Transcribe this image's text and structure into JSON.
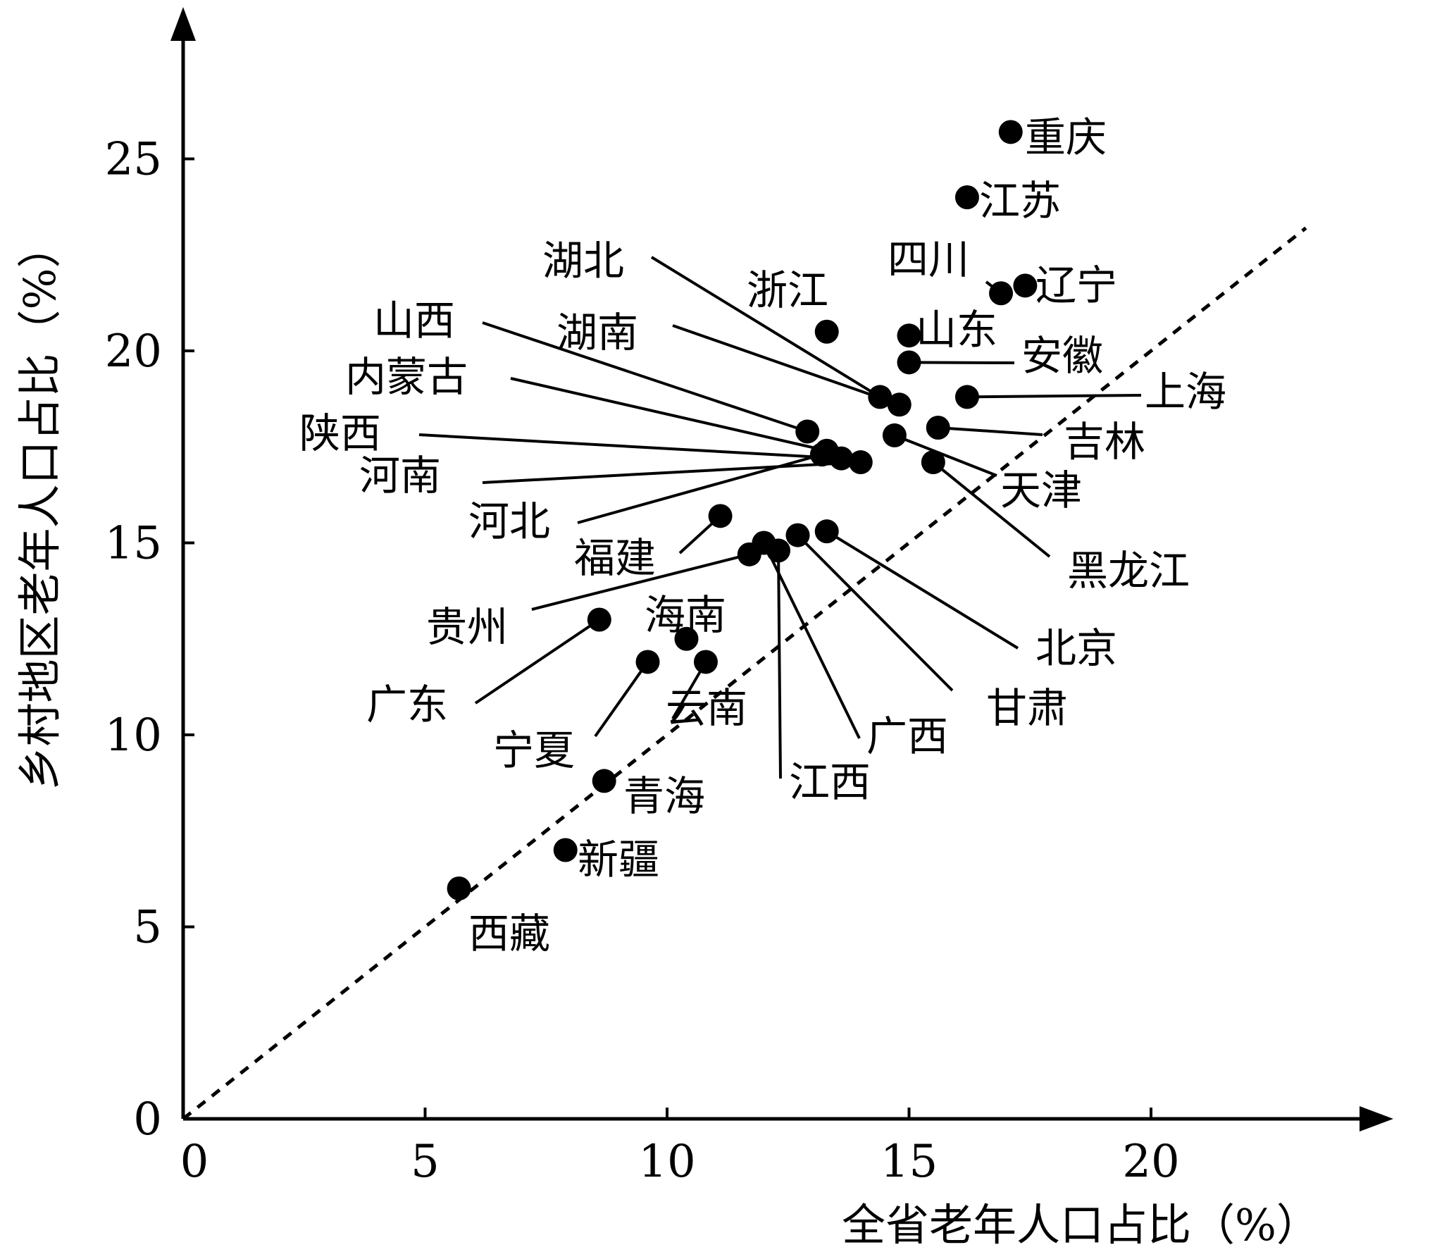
{
  "chart_data": {
    "type": "scatter",
    "xlabel": "全省老年人口占比（%）",
    "ylabel": "乡村地区老年人口占比（%）",
    "xlim": [
      0,
      25
    ],
    "ylim": [
      0,
      28
    ],
    "xticks": [
      0,
      5,
      10,
      15,
      20
    ],
    "yticks": [
      0,
      5,
      10,
      15,
      20,
      25
    ],
    "reference_line": "y = x (dashed)",
    "grid": false,
    "points": [
      {
        "name": "重庆",
        "x": 17.1,
        "y": 25.7
      },
      {
        "name": "江苏",
        "x": 16.2,
        "y": 24.0
      },
      {
        "name": "四川",
        "x": 16.9,
        "y": 21.5
      },
      {
        "name": "辽宁",
        "x": 17.4,
        "y": 21.7
      },
      {
        "name": "浙江",
        "x": 13.3,
        "y": 20.5
      },
      {
        "name": "山东",
        "x": 15.0,
        "y": 20.4
      },
      {
        "name": "安徽",
        "x": 15.0,
        "y": 19.7
      },
      {
        "name": "上海",
        "x": 16.2,
        "y": 18.8
      },
      {
        "name": "湖北",
        "x": 14.4,
        "y": 18.8
      },
      {
        "name": "湖南",
        "x": 14.8,
        "y": 18.6
      },
      {
        "name": "吉林",
        "x": 15.6,
        "y": 18.0
      },
      {
        "name": "山西",
        "x": 12.9,
        "y": 17.9
      },
      {
        "name": "天津",
        "x": 14.7,
        "y": 17.8
      },
      {
        "name": "内蒙古",
        "x": 13.3,
        "y": 17.4
      },
      {
        "name": "陕西",
        "x": 13.6,
        "y": 17.2
      },
      {
        "name": "河南",
        "x": 14.0,
        "y": 17.1
      },
      {
        "name": "黑龙江",
        "x": 15.5,
        "y": 17.1
      },
      {
        "name": "河北",
        "x": 13.2,
        "y": 17.3
      },
      {
        "name": "福建",
        "x": 11.1,
        "y": 15.7
      },
      {
        "name": "北京",
        "x": 13.3,
        "y": 15.3
      },
      {
        "name": "甘肃",
        "x": 12.7,
        "y": 15.2
      },
      {
        "name": "广西",
        "x": 12.0,
        "y": 15.0
      },
      {
        "name": "江西",
        "x": 12.3,
        "y": 14.8
      },
      {
        "name": "贵州",
        "x": 11.7,
        "y": 14.7
      },
      {
        "name": "广东",
        "x": 8.6,
        "y": 13.0
      },
      {
        "name": "海南",
        "x": 10.4,
        "y": 12.5
      },
      {
        "name": "云南",
        "x": 10.8,
        "y": 11.9
      },
      {
        "name": "宁夏",
        "x": 9.6,
        "y": 11.9
      },
      {
        "name": "青海",
        "x": 8.7,
        "y": 8.8
      },
      {
        "name": "新疆",
        "x": 7.9,
        "y": 7.0
      },
      {
        "name": "西藏",
        "x": 5.7,
        "y": 6.0
      }
    ]
  }
}
